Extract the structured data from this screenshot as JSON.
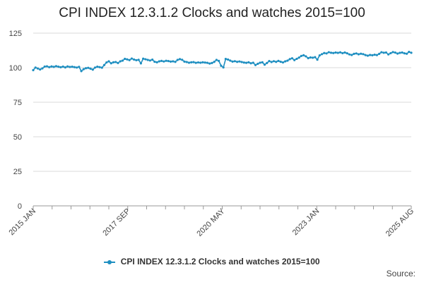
{
  "chart_data": {
    "type": "line",
    "title": "CPI INDEX 12.3.1.2 Clocks and watches 2015=100",
    "xlabel": "",
    "ylabel": "",
    "ylim": [
      0,
      125
    ],
    "yticks": [
      "0",
      "25",
      "50",
      "75",
      "100",
      "125"
    ],
    "xtick_labels": [
      "2015 JAN",
      "2017 SEP",
      "2020 MAY",
      "2023 JAN",
      "2025 AUG"
    ],
    "x_start": "2015 JAN",
    "x_end": "2025 AUG",
    "grid": "horizontal",
    "legend_position": "bottom",
    "series": [
      {
        "name": "CPI INDEX 12.3.1.2 Clocks and watches 2015=100",
        "color": "#1F8FC1",
        "values": [
          98.2,
          100.1,
          99.4,
          98.7,
          99.5,
          100.8,
          101.0,
          100.4,
          100.9,
          100.6,
          101.1,
          100.7,
          100.3,
          100.8,
          100.2,
          100.9,
          100.5,
          100.7,
          100.4,
          100.1,
          100.6,
          97.5,
          98.9,
          99.6,
          99.9,
          99.3,
          98.6,
          100.1,
          100.7,
          100.4,
          100.0,
          101.9,
          103.8,
          104.6,
          103.2,
          103.9,
          104.1,
          103.4,
          104.6,
          105.1,
          106.4,
          106.0,
          105.5,
          106.6,
          105.9,
          105.4,
          105.7,
          103.1,
          106.5,
          106.1,
          105.6,
          105.2,
          105.8,
          104.3,
          103.9,
          104.6,
          104.9,
          104.5,
          105.0,
          104.8,
          104.4,
          104.6,
          104.2,
          105.6,
          106.2,
          105.7,
          104.4,
          104.1,
          103.6,
          103.9,
          104.0,
          103.5,
          103.8,
          103.6,
          103.9,
          103.7,
          103.5,
          103.0,
          103.4,
          104.2,
          105.6,
          104.9,
          101.4,
          100.2,
          106.3,
          105.9,
          105.1,
          104.4,
          104.7,
          104.2,
          104.5,
          104.1,
          103.7,
          103.5,
          103.9,
          103.2,
          103.6,
          101.9,
          102.8,
          103.6,
          103.9,
          102.2,
          103.4,
          104.8,
          104.1,
          104.7,
          104.2,
          104.9,
          104.3,
          103.8,
          104.6,
          105.1,
          106.2,
          106.8,
          105.5,
          106.4,
          107.3,
          108.5,
          109.0,
          108.2,
          106.9,
          107.4,
          107.2,
          107.6,
          105.8,
          108.9,
          109.8,
          110.6,
          110.3,
          111.2,
          110.8,
          110.6,
          111.0,
          110.7,
          111.1,
          110.5,
          111.0,
          110.4,
          109.6,
          109.2,
          110.0,
          110.3,
          109.7,
          110.1,
          109.8,
          109.1,
          108.7,
          109.2,
          109.0,
          109.4,
          109.1,
          110.0,
          111.2,
          110.8,
          111.0,
          109.6,
          110.5,
          111.3,
          110.9,
          110.2,
          110.7,
          111.0,
          110.4,
          110.1,
          111.4,
          110.8
        ]
      }
    ]
  },
  "source_label": "Source:"
}
